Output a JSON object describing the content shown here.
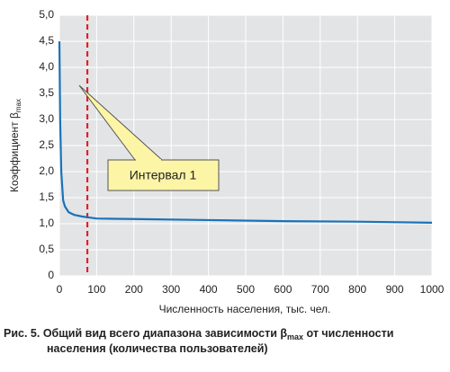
{
  "chart_data": {
    "type": "line",
    "ylabel": {
      "text": "Коэффициент β",
      "subscript": "max"
    },
    "xlabel": "Численность населения, тыс. чел.",
    "x": [
      0,
      2,
      5,
      10,
      15,
      25,
      40,
      60,
      80,
      100,
      200,
      400,
      600,
      800,
      1000
    ],
    "series": [
      {
        "color": "#1a73b8",
        "values": [
          4.5,
          3.0,
          2.0,
          1.45,
          1.33,
          1.22,
          1.17,
          1.14,
          1.12,
          1.1,
          1.09,
          1.07,
          1.05,
          1.04,
          1.02
        ]
      }
    ],
    "xlim": [
      0,
      1000
    ],
    "xticks": [
      0,
      100,
      200,
      300,
      400,
      500,
      600,
      700,
      800,
      900,
      1000
    ],
    "ylim": [
      0,
      5
    ],
    "yticks": [
      0,
      {
        "value": 0.5,
        "label": "0,5"
      },
      {
        "value": 1,
        "label": "1,0"
      },
      {
        "value": 1.5,
        "label": "1,5"
      },
      {
        "value": 2,
        "label": "2,0"
      },
      {
        "value": 2.5,
        "label": "2,5"
      },
      {
        "value": 3,
        "label": "3,0"
      },
      {
        "value": 3.5,
        "label": "3,5"
      },
      {
        "value": 4,
        "label": "4,0"
      },
      {
        "value": 4.5,
        "label": "4,5"
      },
      {
        "value": 5,
        "label": "5,0"
      }
    ],
    "grid": true,
    "vline": {
      "x": 75,
      "color": "#e0202a"
    },
    "annotation": {
      "text": "Интервал 1"
    },
    "caption": {
      "prefix": "Рис. 5. Общий вид всего диапазона зависимости β",
      "subscript": "max",
      "suffix": " от численности",
      "line2": "населения (количества пользователей)"
    }
  }
}
